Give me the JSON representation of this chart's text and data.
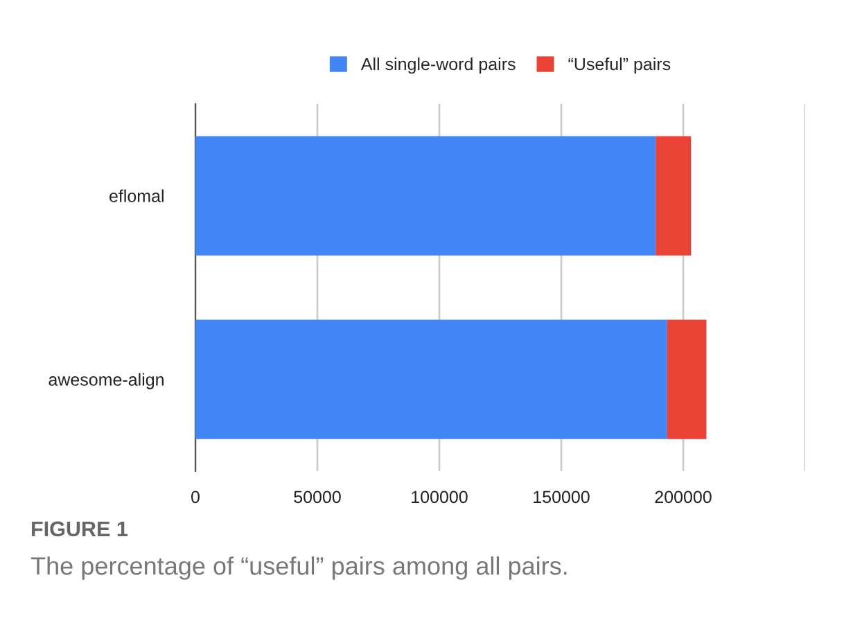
{
  "chart_data": {
    "type": "bar",
    "orientation": "horizontal",
    "stacked": true,
    "categories": [
      "eflomal",
      "awesome-align"
    ],
    "series": [
      {
        "name": "All single-word pairs",
        "color": "#4285f4",
        "values": [
          188700,
          193400
        ]
      },
      {
        "name": "“Useful” pairs",
        "color": "#ea4335",
        "values": [
          14500,
          16100
        ]
      }
    ],
    "xlim": [
      0,
      250000
    ],
    "xticks": [
      0,
      50000,
      100000,
      150000,
      200000,
      {
        "value": 250000,
        "label": null
      }
    ],
    "grid": "x",
    "legend": "top",
    "annotations": [
      "FIGURE 1",
      "The percentage of “useful” pairs among all pairs."
    ]
  }
}
